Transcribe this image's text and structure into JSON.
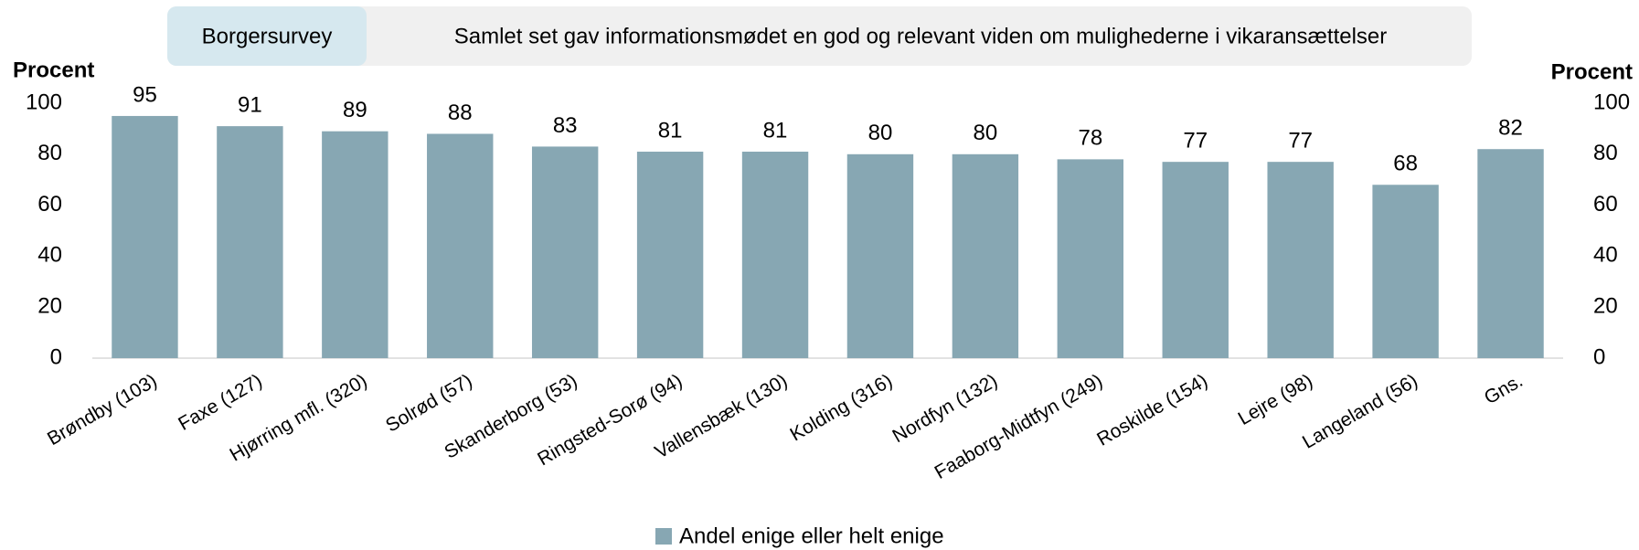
{
  "chart_data": {
    "type": "bar",
    "tag": "Borgersurvey",
    "title": "Samlet set gav informationsmødet en god og relevant viden om mulighederne i vikaransættelser",
    "ylabel": "Procent",
    "y2label": "Procent",
    "categories": [
      "Brøndby (103)",
      "Faxe (127)",
      "Hjørring mfl. (320)",
      "Solrød (57)",
      "Skanderborg (53)",
      "Ringsted-Sorø (94)",
      "Vallensbæk (130)",
      "Kolding (316)",
      "Nordfyn (132)",
      "Faaborg-Midtfyn (249)",
      "Roskilde (154)",
      "Lejre (98)",
      "Langeland (56)",
      "Gns."
    ],
    "series": [
      {
        "name": "Andel enige eller helt enige",
        "color": "#87a7b3",
        "values": [
          95,
          91,
          89,
          88,
          83,
          81,
          81,
          80,
          80,
          78,
          77,
          77,
          68,
          82
        ]
      }
    ],
    "ylim": [
      0,
      100
    ],
    "yticks": [
      0,
      20,
      40,
      60,
      80,
      100
    ],
    "y2lim": [
      0,
      100
    ],
    "y2ticks": [
      0,
      20,
      40,
      60,
      80,
      100
    ],
    "legend": "bottom"
  }
}
